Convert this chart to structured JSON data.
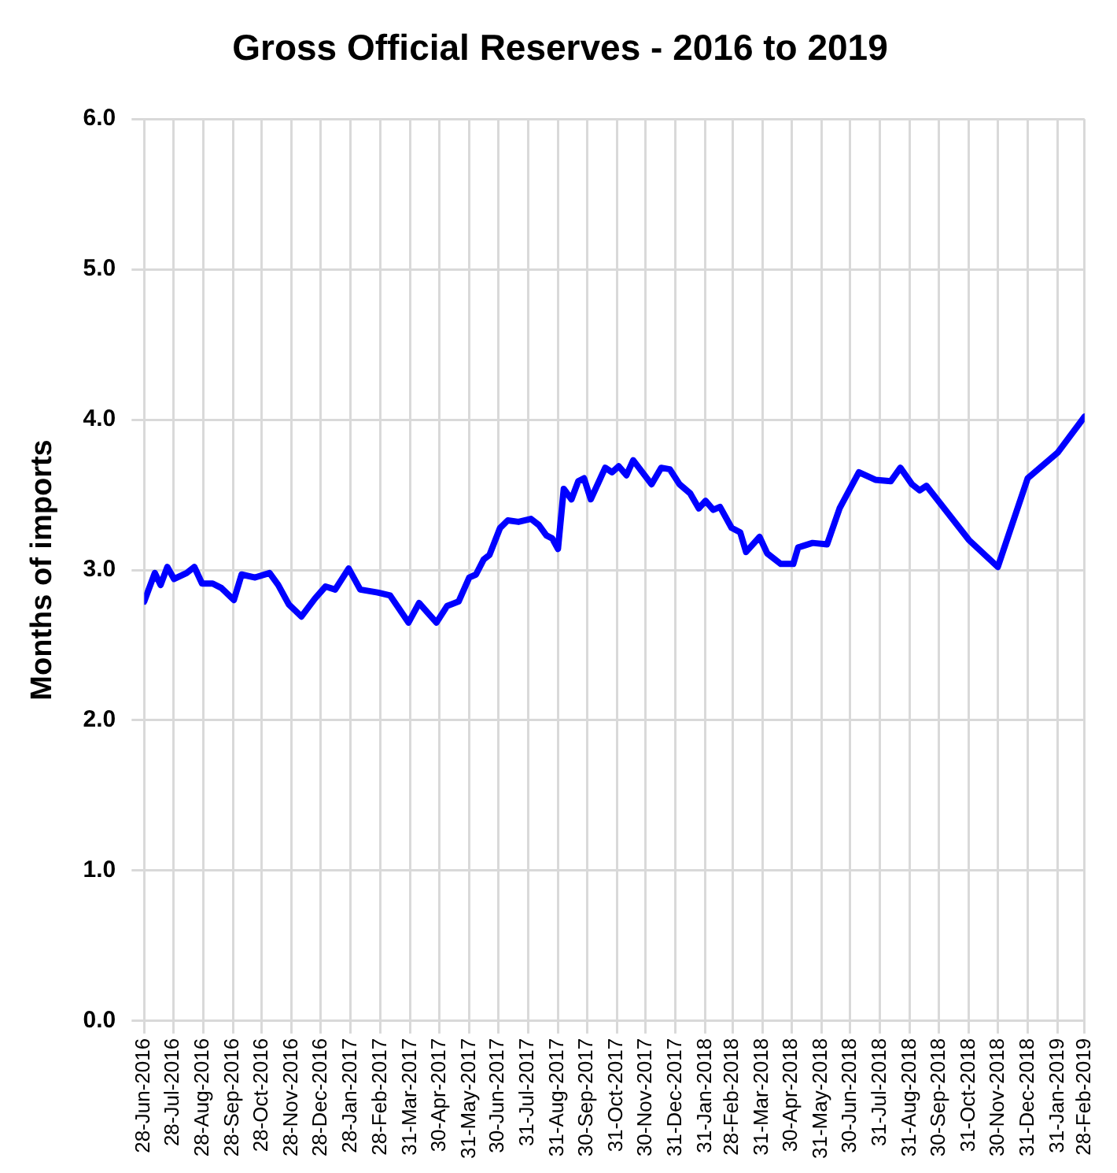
{
  "chart_data": {
    "type": "line",
    "title": "Gross Official Reserves - 2016 to 2019",
    "ylabel": "Months of imports",
    "x": [
      "2016-06-28",
      "2016-07-09",
      "2016-07-15",
      "2016-07-22",
      "2016-07-29",
      "2016-08-11",
      "2016-08-19",
      "2016-08-27",
      "2016-09-07",
      "2016-09-16",
      "2016-09-29",
      "2016-10-07",
      "2016-10-21",
      "2016-11-05",
      "2016-11-14",
      "2016-11-25",
      "2016-12-08",
      "2016-12-22",
      "2017-01-02",
      "2017-01-12",
      "2017-01-26",
      "2017-02-07",
      "2017-02-25",
      "2017-03-10",
      "2017-03-29",
      "2017-04-09",
      "2017-04-27",
      "2017-05-08",
      "2017-05-20",
      "2017-05-31",
      "2017-06-07",
      "2017-06-15",
      "2017-06-21",
      "2017-07-02",
      "2017-07-10",
      "2017-07-21",
      "2017-08-03",
      "2017-08-11",
      "2017-08-19",
      "2017-08-25",
      "2017-08-31",
      "2017-09-06",
      "2017-09-14",
      "2017-09-21",
      "2017-09-27",
      "2017-10-04",
      "2017-10-19",
      "2017-10-26",
      "2017-11-02",
      "2017-11-10",
      "2017-11-17",
      "2017-12-06",
      "2017-12-16",
      "2017-12-25",
      "2018-01-04",
      "2018-01-15",
      "2018-01-24",
      "2018-01-31",
      "2018-02-08",
      "2018-02-15",
      "2018-02-27",
      "2018-03-08",
      "2018-03-14",
      "2018-03-28",
      "2018-04-05",
      "2018-04-19",
      "2018-05-02",
      "2018-05-07",
      "2018-05-22",
      "2018-06-06",
      "2018-06-19",
      "2018-07-09",
      "2018-07-26",
      "2018-08-11",
      "2018-08-21",
      "2018-09-02",
      "2018-09-10",
      "2018-09-17",
      "2018-10-31",
      "2018-11-30",
      "2018-12-31",
      "2019-01-31",
      "2019-02-28"
    ],
    "series": [
      {
        "color": "#0000ff",
        "values": [
          2.79,
          2.98,
          2.9,
          3.02,
          2.94,
          2.98,
          3.02,
          2.91,
          2.91,
          2.88,
          2.8,
          2.97,
          2.95,
          2.98,
          2.9,
          2.77,
          2.69,
          2.81,
          2.89,
          2.87,
          3.01,
          2.87,
          2.85,
          2.83,
          2.65,
          2.78,
          2.65,
          2.76,
          2.79,
          2.95,
          2.97,
          3.07,
          3.1,
          3.28,
          3.33,
          3.32,
          3.34,
          3.3,
          3.23,
          3.21,
          3.14,
          3.54,
          3.47,
          3.59,
          3.61,
          3.47,
          3.68,
          3.65,
          3.69,
          3.63,
          3.73,
          3.57,
          3.68,
          3.67,
          3.57,
          3.51,
          3.41,
          3.46,
          3.4,
          3.42,
          3.28,
          3.25,
          3.12,
          3.22,
          3.11,
          3.04,
          3.04,
          3.15,
          3.18,
          3.17,
          3.41,
          3.65,
          3.6,
          3.59,
          3.68,
          3.57,
          3.53,
          3.56,
          3.2,
          3.02,
          3.61,
          3.78,
          4.02
        ]
      }
    ],
    "xlim": [
      "2016-06-28",
      "2019-02-28"
    ],
    "xticks": [
      {
        "value": "2016-06-28",
        "label": "28-Jun-2016"
      },
      {
        "value": "2016-07-28",
        "label": "28-Jul-2016"
      },
      {
        "value": "2016-08-28",
        "label": "28-Aug-2016"
      },
      {
        "value": "2016-09-28",
        "label": "28-Sep-2016"
      },
      {
        "value": "2016-10-28",
        "label": "28-Oct-2016"
      },
      {
        "value": "2016-11-28",
        "label": "28-Nov-2016"
      },
      {
        "value": "2016-12-28",
        "label": "28-Dec-2016"
      },
      {
        "value": "2017-01-28",
        "label": "28-Jan-2017"
      },
      {
        "value": "2017-02-28",
        "label": "28-Feb-2017"
      },
      {
        "value": "2017-03-31",
        "label": "31-Mar-2017"
      },
      {
        "value": "2017-04-30",
        "label": "30-Apr-2017"
      },
      {
        "value": "2017-05-31",
        "label": "31-May-2017"
      },
      {
        "value": "2017-06-30",
        "label": "30-Jun-2017"
      },
      {
        "value": "2017-07-31",
        "label": "31-Jul-2017"
      },
      {
        "value": "2017-08-31",
        "label": "31-Aug-2017"
      },
      {
        "value": "2017-09-30",
        "label": "30-Sep-2017"
      },
      {
        "value": "2017-10-31",
        "label": "31-Oct-2017"
      },
      {
        "value": "2017-11-30",
        "label": "30-Nov-2017"
      },
      {
        "value": "2017-12-31",
        "label": "31-Dec-2017"
      },
      {
        "value": "2018-01-31",
        "label": "31-Jan-2018"
      },
      {
        "value": "2018-02-28",
        "label": "28-Feb-2018"
      },
      {
        "value": "2018-03-31",
        "label": "31-Mar-2018"
      },
      {
        "value": "2018-04-30",
        "label": "30-Apr-2018"
      },
      {
        "value": "2018-05-31",
        "label": "31-May-2018"
      },
      {
        "value": "2018-06-30",
        "label": "30-Jun-2018"
      },
      {
        "value": "2018-07-31",
        "label": "31-Jul-2018"
      },
      {
        "value": "2018-08-31",
        "label": "31-Aug-2018"
      },
      {
        "value": "2018-09-30",
        "label": "30-Sep-2018"
      },
      {
        "value": "2018-10-31",
        "label": "31-Oct-2018"
      },
      {
        "value": "2018-11-30",
        "label": "30-Nov-2018"
      },
      {
        "value": "2018-12-31",
        "label": "31-Dec-2018"
      },
      {
        "value": "2019-01-31",
        "label": "31-Jan-2019"
      },
      {
        "value": "2019-02-28",
        "label": "28-Feb-2019"
      }
    ],
    "ylim": [
      0,
      6
    ],
    "yticks": [
      {
        "value": 0,
        "label": "0.0"
      },
      {
        "value": 1,
        "label": "1.0"
      },
      {
        "value": 2,
        "label": "2.0"
      },
      {
        "value": 3,
        "label": "3.0"
      },
      {
        "value": 4,
        "label": "4.0"
      },
      {
        "value": 5,
        "label": "5.0"
      },
      {
        "value": 6,
        "label": "6.0"
      }
    ],
    "grid": true,
    "marker": "none",
    "line_style": "solid"
  }
}
